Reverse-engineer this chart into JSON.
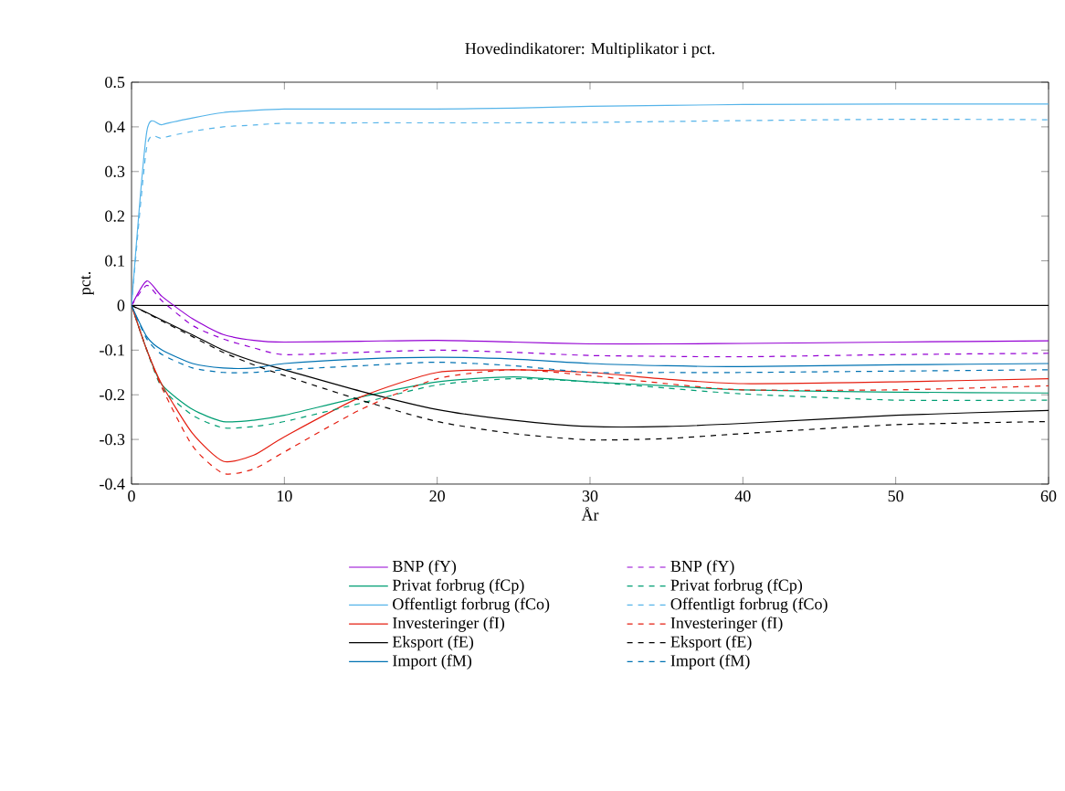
{
  "chart_data": {
    "type": "line",
    "title": "Hovedindikatorer: Multiplikator i pct.",
    "xlabel": "År",
    "ylabel": "pct.",
    "xlim": [
      0,
      60
    ],
    "xticks": [
      0,
      10,
      20,
      30,
      40,
      50,
      60
    ],
    "ylim": [
      -0.4,
      0.5
    ],
    "yticks": [
      -0.4,
      -0.3,
      -0.2,
      -0.1,
      0,
      0.1,
      0.2,
      0.3,
      0.4,
      0.5
    ],
    "grid": false,
    "legend": "bottom",
    "marker": "none",
    "ref_lines": [
      {
        "axis": "y",
        "value": 0,
        "color": "#000000"
      }
    ],
    "x": [
      0,
      1,
      2,
      4,
      6,
      8,
      10,
      15,
      20,
      25,
      30,
      35,
      40,
      50,
      60
    ],
    "series": [
      {
        "name": "BNP (fY)",
        "color": "#9400d3",
        "line_style": "solid",
        "values": [
          0,
          0.055,
          0.02,
          -0.03,
          -0.065,
          -0.078,
          -0.082,
          -0.08,
          -0.078,
          -0.082,
          -0.086,
          -0.086,
          -0.085,
          -0.082,
          -0.079
        ]
      },
      {
        "name": "Privat forbrug (fCp)",
        "color": "#009e73",
        "line_style": "solid",
        "values": [
          0,
          -0.1,
          -0.178,
          -0.233,
          -0.26,
          -0.257,
          -0.246,
          -0.205,
          -0.171,
          -0.16,
          -0.171,
          -0.18,
          -0.189,
          -0.194,
          -0.196
        ]
      },
      {
        "name": "Offentligt forbrug (fCo)",
        "color": "#56b4e9",
        "line_style": "solid",
        "values": [
          0,
          0.39,
          0.405,
          0.42,
          0.432,
          0.437,
          0.44,
          0.44,
          0.44,
          0.442,
          0.446,
          0.448,
          0.45,
          0.451,
          0.451
        ]
      },
      {
        "name": "Investeringer (fI)",
        "color": "#e51e10",
        "line_style": "solid",
        "values": [
          0,
          -0.1,
          -0.178,
          -0.287,
          -0.349,
          -0.335,
          -0.294,
          -0.205,
          -0.15,
          -0.144,
          -0.15,
          -0.165,
          -0.175,
          -0.171,
          -0.164
        ]
      },
      {
        "name": "Eksport (fE)",
        "color": "#000000",
        "line_style": "solid",
        "values": [
          0,
          -0.016,
          -0.033,
          -0.066,
          -0.1,
          -0.125,
          -0.144,
          -0.192,
          -0.233,
          -0.257,
          -0.271,
          -0.271,
          -0.264,
          -0.246,
          -0.235
        ]
      },
      {
        "name": "Import (fM)",
        "color": "#0072b2",
        "line_style": "solid",
        "values": [
          0,
          -0.07,
          -0.1,
          -0.13,
          -0.14,
          -0.14,
          -0.13,
          -0.12,
          -0.116,
          -0.12,
          -0.13,
          -0.135,
          -0.137,
          -0.133,
          -0.13
        ]
      },
      {
        "name": "BNP (fY)",
        "color": "#9400d3",
        "line_style": "dashed",
        "values": [
          0,
          0.045,
          0.01,
          -0.045,
          -0.075,
          -0.095,
          -0.11,
          -0.105,
          -0.1,
          -0.105,
          -0.112,
          -0.114,
          -0.115,
          -0.11,
          -0.107
        ]
      },
      {
        "name": "Privat forbrug (fCp)",
        "color": "#009e73",
        "line_style": "dashed",
        "values": [
          0,
          -0.1,
          -0.185,
          -0.246,
          -0.274,
          -0.271,
          -0.26,
          -0.219,
          -0.178,
          -0.164,
          -0.171,
          -0.185,
          -0.198,
          -0.212,
          -0.212
        ]
      },
      {
        "name": "Offentligt forbrug (fCo)",
        "color": "#56b4e9",
        "line_style": "dashed",
        "values": [
          0,
          0.356,
          0.375,
          0.39,
          0.4,
          0.404,
          0.408,
          0.409,
          0.409,
          0.409,
          0.41,
          0.412,
          0.414,
          0.417,
          0.416
        ]
      },
      {
        "name": "Investeringer (fI)",
        "color": "#e51e10",
        "line_style": "dashed",
        "values": [
          0,
          -0.1,
          -0.185,
          -0.315,
          -0.376,
          -0.366,
          -0.328,
          -0.233,
          -0.164,
          -0.144,
          -0.157,
          -0.175,
          -0.189,
          -0.189,
          -0.18
        ]
      },
      {
        "name": "Eksport (fE)",
        "color": "#000000",
        "line_style": "dashed",
        "values": [
          0,
          -0.017,
          -0.035,
          -0.07,
          -0.105,
          -0.133,
          -0.157,
          -0.212,
          -0.26,
          -0.287,
          -0.301,
          -0.298,
          -0.287,
          -0.267,
          -0.26
        ]
      },
      {
        "name": "Import (fM)",
        "color": "#0072b2",
        "line_style": "dashed",
        "values": [
          0,
          -0.075,
          -0.11,
          -0.14,
          -0.15,
          -0.15,
          -0.144,
          -0.135,
          -0.127,
          -0.135,
          -0.15,
          -0.15,
          -0.15,
          -0.147,
          -0.144
        ]
      }
    ]
  }
}
